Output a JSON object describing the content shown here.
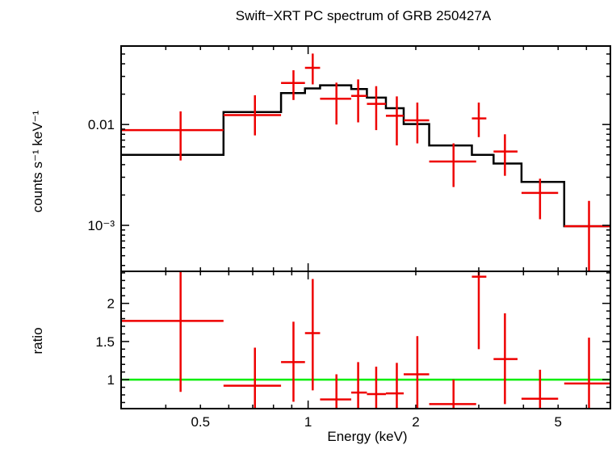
{
  "chart_data": {
    "type": "spectrum",
    "title": "Swift−XRT PC spectrum of GRB 250427A",
    "xlabel": "Energy (keV)",
    "xscale": "log",
    "xlim": [
      0.3,
      7.0
    ],
    "x_ticks": [
      {
        "value": 0.5,
        "label": "0.5"
      },
      {
        "value": 1,
        "label": "1"
      },
      {
        "value": 2,
        "label": "2"
      },
      {
        "value": 5,
        "label": "5"
      }
    ],
    "top_panel": {
      "ylabel": "counts s⁻¹ keV⁻¹",
      "yscale": "log",
      "ylim": [
        0.00035,
        0.06
      ],
      "y_ticks": [
        {
          "value": 0.01,
          "label": "0.01"
        },
        {
          "value": 0.001,
          "label": "10⁻³"
        }
      ],
      "data": [
        {
          "xlo": 0.3,
          "xhi": 0.58,
          "x": 0.44,
          "y": 0.0088,
          "ylo": 0.0044,
          "yhi": 0.0135
        },
        {
          "xlo": 0.58,
          "xhi": 0.84,
          "x": 0.71,
          "y": 0.0124,
          "ylo": 0.0078,
          "yhi": 0.0195
        },
        {
          "xlo": 0.84,
          "xhi": 0.98,
          "x": 0.91,
          "y": 0.0258,
          "ylo": 0.0175,
          "yhi": 0.0345
        },
        {
          "xlo": 0.98,
          "xhi": 1.08,
          "x": 1.03,
          "y": 0.0365,
          "ylo": 0.025,
          "yhi": 0.0505
        },
        {
          "xlo": 1.08,
          "xhi": 1.32,
          "x": 1.2,
          "y": 0.018,
          "ylo": 0.01,
          "yhi": 0.026
        },
        {
          "xlo": 1.32,
          "xhi": 1.46,
          "x": 1.38,
          "y": 0.0192,
          "ylo": 0.0105,
          "yhi": 0.028
        },
        {
          "xlo": 1.46,
          "xhi": 1.65,
          "x": 1.55,
          "y": 0.016,
          "ylo": 0.0088,
          "yhi": 0.024
        },
        {
          "xlo": 1.65,
          "xhi": 1.85,
          "x": 1.77,
          "y": 0.0122,
          "ylo": 0.0062,
          "yhi": 0.019
        },
        {
          "xlo": 1.85,
          "xhi": 2.18,
          "x": 2.02,
          "y": 0.011,
          "ylo": 0.0065,
          "yhi": 0.0165
        },
        {
          "xlo": 2.18,
          "xhi": 2.95,
          "x": 2.55,
          "y": 0.0043,
          "ylo": 0.0024,
          "yhi": 0.0065
        },
        {
          "xlo": 2.87,
          "xhi": 3.15,
          "x": 3.0,
          "y": 0.0115,
          "ylo": 0.0075,
          "yhi": 0.0165
        },
        {
          "xlo": 3.3,
          "xhi": 3.85,
          "x": 3.55,
          "y": 0.0054,
          "ylo": 0.0031,
          "yhi": 0.008
        },
        {
          "xlo": 3.95,
          "xhi": 5.0,
          "x": 4.45,
          "y": 0.0021,
          "ylo": 0.00115,
          "yhi": 0.0029
        },
        {
          "xlo": 5.2,
          "xhi": 7.0,
          "x": 6.1,
          "y": 0.00098,
          "ylo": 0.00035,
          "yhi": 0.00175
        }
      ],
      "model": [
        {
          "xlo": 0.3,
          "xhi": 0.58,
          "y": 0.005
        },
        {
          "xlo": 0.58,
          "xhi": 0.84,
          "y": 0.0133
        },
        {
          "xlo": 0.84,
          "xhi": 0.98,
          "y": 0.0205
        },
        {
          "xlo": 0.98,
          "xhi": 1.08,
          "y": 0.0228
        },
        {
          "xlo": 1.08,
          "xhi": 1.32,
          "y": 0.0245
        },
        {
          "xlo": 1.32,
          "xhi": 1.46,
          "y": 0.0225
        },
        {
          "xlo": 1.46,
          "xhi": 1.65,
          "y": 0.0185
        },
        {
          "xlo": 1.65,
          "xhi": 1.85,
          "y": 0.0145
        },
        {
          "xlo": 1.85,
          "xhi": 2.18,
          "y": 0.0101
        },
        {
          "xlo": 2.18,
          "xhi": 2.87,
          "y": 0.0062
        },
        {
          "xlo": 2.87,
          "xhi": 3.3,
          "y": 0.005
        },
        {
          "xlo": 3.3,
          "xhi": 3.95,
          "y": 0.0041
        },
        {
          "xlo": 3.95,
          "xhi": 5.2,
          "y": 0.0027
        },
        {
          "xlo": 5.2,
          "xhi": 7.0,
          "y": 0.00098
        }
      ]
    },
    "bottom_panel": {
      "ylabel": "ratio",
      "yscale": "linear",
      "ylim": [
        0.62,
        2.42
      ],
      "y_ticks": [
        {
          "value": 1,
          "label": "1"
        },
        {
          "value": 1.5,
          "label": "1.5"
        },
        {
          "value": 2,
          "label": "2"
        }
      ],
      "reference_line": 1.0,
      "data": [
        {
          "xlo": 0.3,
          "xhi": 0.58,
          "x": 0.44,
          "y": 1.77,
          "ylo": 0.84,
          "yhi": 2.42
        },
        {
          "xlo": 0.58,
          "xhi": 0.84,
          "x": 0.71,
          "y": 0.92,
          "ylo": 0.6,
          "yhi": 1.42
        },
        {
          "xlo": 0.84,
          "xhi": 0.98,
          "x": 0.91,
          "y": 1.23,
          "ylo": 0.71,
          "yhi": 1.76
        },
        {
          "xlo": 0.98,
          "xhi": 1.08,
          "x": 1.03,
          "y": 1.61,
          "ylo": 0.86,
          "yhi": 2.32
        },
        {
          "xlo": 1.08,
          "xhi": 1.32,
          "x": 1.2,
          "y": 0.74,
          "ylo": 0.4,
          "yhi": 1.07
        },
        {
          "xlo": 1.32,
          "xhi": 1.46,
          "x": 1.38,
          "y": 0.83,
          "ylo": 0.45,
          "yhi": 1.23
        },
        {
          "xlo": 1.46,
          "xhi": 1.65,
          "x": 1.55,
          "y": 0.81,
          "ylo": 0.47,
          "yhi": 1.17
        },
        {
          "xlo": 1.65,
          "xhi": 1.85,
          "x": 1.77,
          "y": 0.82,
          "ylo": 0.43,
          "yhi": 1.22
        },
        {
          "xlo": 1.85,
          "xhi": 2.18,
          "x": 2.02,
          "y": 1.07,
          "ylo": 0.63,
          "yhi": 1.57
        },
        {
          "xlo": 2.18,
          "xhi": 2.95,
          "x": 2.55,
          "y": 0.68,
          "ylo": 0.38,
          "yhi": 1.0
        },
        {
          "xlo": 2.87,
          "xhi": 3.15,
          "x": 3.0,
          "y": 2.35,
          "ylo": 1.4,
          "yhi": 2.42
        },
        {
          "xlo": 3.3,
          "xhi": 3.85,
          "x": 3.55,
          "y": 1.27,
          "ylo": 0.68,
          "yhi": 1.87
        },
        {
          "xlo": 3.95,
          "xhi": 5.0,
          "x": 4.45,
          "y": 0.75,
          "ylo": 0.42,
          "yhi": 1.13
        },
        {
          "xlo": 5.2,
          "xhi": 7.0,
          "x": 6.1,
          "y": 0.95,
          "ylo": 0.35,
          "yhi": 1.55
        }
      ]
    },
    "colors": {
      "data": "#ee0000",
      "model": "#000000",
      "reference": "#00ee00",
      "axes": "#000000"
    }
  }
}
